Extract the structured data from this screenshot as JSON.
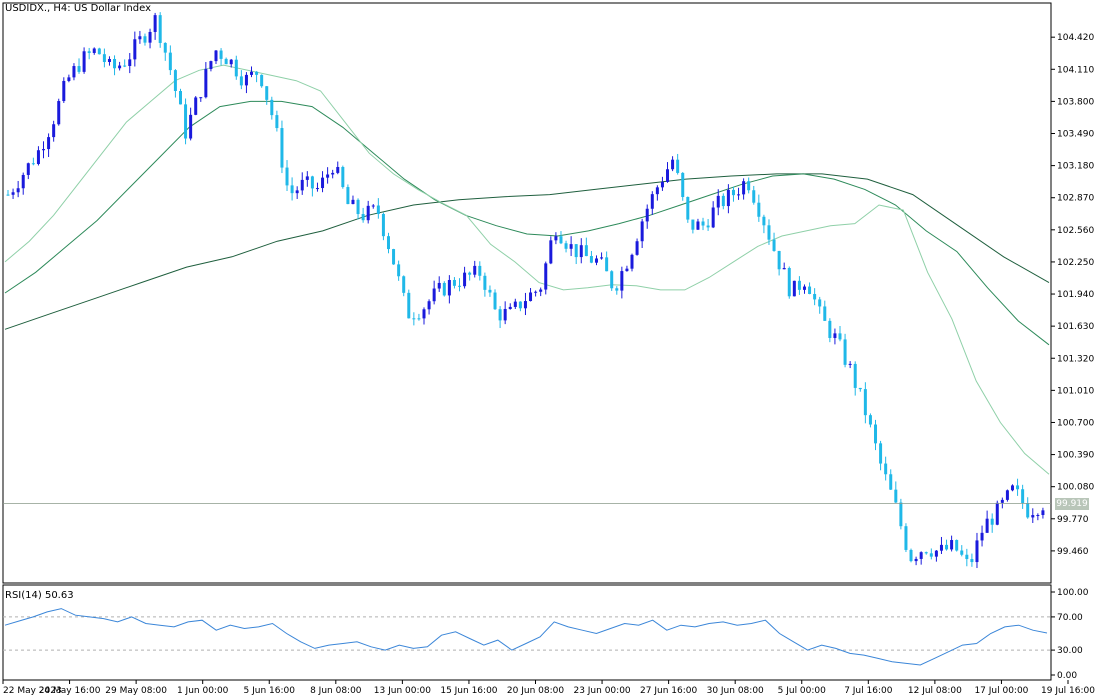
{
  "header": {
    "title": "USDIDX., H4:  US Dollar Index"
  },
  "rsi": {
    "label": "RSI(14) 50.63"
  },
  "current_price": "99.919",
  "colors": {
    "bull": "#1a1adc",
    "bear": "#1fb8e8",
    "ma_fast": "#8fd0a8",
    "ma_mid": "#2d8a5a",
    "ma_slow": "#1f5f3e",
    "rsi_line": "#3b86d8",
    "axis": "#000000"
  },
  "chart_data": [
    {
      "type": "candlestick",
      "title": "USDIDX., H4:  US Dollar Index",
      "ylim": [
        99.15,
        104.75
      ],
      "y_ticks": [
        "104.420",
        "104.110",
        "103.800",
        "103.490",
        "103.180",
        "102.870",
        "102.560",
        "102.250",
        "101.940",
        "101.630",
        "101.320",
        "101.010",
        "100.700",
        "100.390",
        "100.080",
        "99.770",
        "99.460"
      ],
      "x_ticks": [
        "22 May 2023",
        "24 May 16:00",
        "29 May 08:00",
        "1 Jun 00:00",
        "5 Jun 16:00",
        "8 Jun 08:00",
        "13 Jun 00:00",
        "15 Jun 16:00",
        "20 Jun 08:00",
        "23 Jun 00:00",
        "27 Jun 16:00",
        "30 Jun 08:00",
        "5 Jul 00:00",
        "7 Jul 16:00",
        "12 Jul 08:00",
        "17 Jul 00:00",
        "19 Jul 16:00"
      ],
      "close_path": [
        102.9,
        103.1,
        103.3,
        103.6,
        104.0,
        104.2,
        104.3,
        104.1,
        104.2,
        104.4,
        104.6,
        104.1,
        103.5,
        103.9,
        104.3,
        104.2,
        104.0,
        104.1,
        103.6,
        102.9,
        103.0,
        102.95,
        103.2,
        102.8,
        102.7,
        102.75,
        102.3,
        101.75,
        101.8,
        101.95,
        102.05,
        102.1,
        102.15,
        101.75,
        101.75,
        101.9,
        102.0,
        102.6,
        102.4,
        102.3,
        102.25,
        102.0,
        102.3,
        102.7,
        103.0,
        103.25,
        102.6,
        102.6,
        102.8,
        102.9,
        103.05,
        102.7,
        102.3,
        101.95,
        102.1,
        101.7,
        101.5,
        101.2,
        100.8,
        100.3,
        99.9,
        99.4,
        99.5,
        99.45,
        99.5,
        99.3,
        99.7,
        99.85,
        100.05,
        99.85,
        99.92
      ],
      "ma_fast": [
        102.25,
        102.45,
        102.7,
        103.0,
        103.3,
        103.6,
        103.8,
        104.0,
        104.1,
        104.15,
        104.1,
        104.05,
        104.0,
        103.9,
        103.6,
        103.3,
        103.1,
        102.95,
        102.82,
        102.7,
        102.42,
        102.25,
        102.05,
        101.98,
        102.0,
        102.03,
        102.02,
        101.98,
        101.98,
        102.1,
        102.25,
        102.4,
        102.5,
        102.55,
        102.6,
        102.62,
        102.8,
        102.75,
        102.15,
        101.7,
        101.1,
        100.7,
        100.4,
        100.2
      ],
      "ma_mid": [
        101.95,
        102.15,
        102.4,
        102.65,
        102.95,
        103.25,
        103.55,
        103.75,
        103.8,
        103.8,
        103.75,
        103.55,
        103.3,
        103.05,
        102.85,
        102.7,
        102.6,
        102.52,
        102.5,
        102.55,
        102.62,
        102.7,
        102.8,
        102.9,
        103.0,
        103.08,
        103.1,
        103.05,
        102.95,
        102.8,
        102.55,
        102.35,
        102.0,
        101.68,
        101.45
      ],
      "ma_slow": [
        101.6,
        101.75,
        101.9,
        102.05,
        102.2,
        102.3,
        102.45,
        102.55,
        102.7,
        102.8,
        102.85,
        102.88,
        102.9,
        102.95,
        103.0,
        103.05,
        103.08,
        103.1,
        103.1,
        103.05,
        102.9,
        102.6,
        102.3,
        102.05
      ],
      "current_price_line": 99.919
    },
    {
      "type": "line",
      "title": "RSI(14) 50.63",
      "ylim": [
        0,
        100
      ],
      "y_ticks": [
        "100.00",
        "70.00",
        "30.00",
        "0.00"
      ],
      "levels": [
        70,
        30
      ],
      "values": [
        60,
        65,
        70,
        76,
        80,
        72,
        70,
        68,
        64,
        70,
        62,
        60,
        58,
        64,
        66,
        54,
        60,
        56,
        58,
        62,
        50,
        40,
        32,
        36,
        38,
        40,
        34,
        30,
        36,
        32,
        34,
        48,
        52,
        44,
        36,
        42,
        30,
        38,
        46,
        64,
        58,
        54,
        50,
        56,
        62,
        60,
        66,
        54,
        60,
        58,
        62,
        64,
        60,
        62,
        66,
        50,
        40,
        30,
        36,
        32,
        26,
        24,
        20,
        16,
        14,
        12,
        20,
        28,
        36,
        38,
        50,
        58,
        60,
        54,
        50.63
      ]
    }
  ]
}
